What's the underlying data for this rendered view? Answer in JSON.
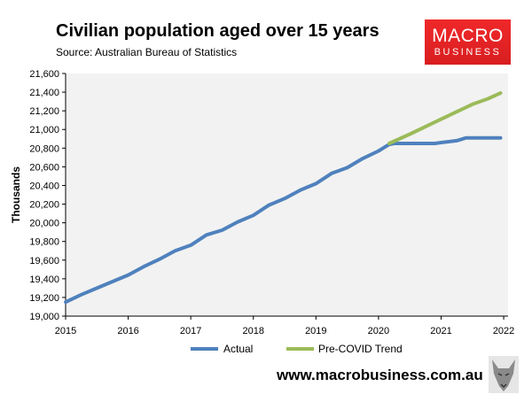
{
  "header": {
    "title": "Civilian population aged over 15 years",
    "source": "Source: Australian Bureau of Statistics"
  },
  "logo": {
    "line1": "MACRO",
    "line2": "BUSINESS"
  },
  "footer": {
    "url": "www.macrobusiness.com.au"
  },
  "colors": {
    "actual": "#4f81bd",
    "trend": "#9bbb59",
    "plot_bg": "#f2f2f2",
    "logo": "#e8242a"
  },
  "chart_data": {
    "type": "line",
    "title": "Civilian population aged over 15 years",
    "xlabel": "",
    "ylabel": "Thousands",
    "xlim": [
      2015,
      2022.07
    ],
    "ylim": [
      19000,
      21600
    ],
    "yticks": [
      19000,
      19200,
      19400,
      19600,
      19800,
      20000,
      20200,
      20400,
      20600,
      20800,
      21000,
      21200,
      21400,
      21600
    ],
    "ytick_labels": [
      "19,000",
      "19,200",
      "19,400",
      "19,600",
      "19,800",
      "20,000",
      "20,200",
      "20,400",
      "20,600",
      "20,800",
      "21,000",
      "21,200",
      "21,400",
      "21,600"
    ],
    "xticks": [
      2015,
      2016,
      2017,
      2018,
      2019,
      2020,
      2021,
      2022
    ],
    "xtick_labels": [
      "2015",
      "2016",
      "2017",
      "2018",
      "2019",
      "2020",
      "2021",
      "2022"
    ],
    "legend_position": "bottom",
    "grid": false,
    "series": [
      {
        "name": "Actual",
        "color": "#4f81bd",
        "x": [
          2015.0,
          2015.25,
          2015.5,
          2015.75,
          2016.0,
          2016.25,
          2016.5,
          2016.75,
          2017.0,
          2017.25,
          2017.5,
          2017.75,
          2018.0,
          2018.25,
          2018.5,
          2018.75,
          2019.0,
          2019.25,
          2019.5,
          2019.75,
          2020.0,
          2020.17,
          2020.25,
          2020.5,
          2020.75,
          2020.9,
          2021.0,
          2021.25,
          2021.4,
          2021.75,
          2021.95
        ],
        "y": [
          19150,
          19230,
          19300,
          19370,
          19440,
          19530,
          19610,
          19700,
          19760,
          19870,
          19920,
          20010,
          20080,
          20190,
          20260,
          20350,
          20420,
          20530,
          20590,
          20690,
          20770,
          20840,
          20850,
          20850,
          20850,
          20850,
          20860,
          20880,
          20910,
          20910,
          20910
        ]
      },
      {
        "name": "Pre-COVID Trend",
        "color": "#9bbb59",
        "x": [
          2020.17,
          2020.5,
          2020.75,
          2021.0,
          2021.25,
          2021.5,
          2021.75,
          2021.95
        ],
        "y": [
          20850,
          20950,
          21030,
          21110,
          21190,
          21270,
          21330,
          21390
        ]
      }
    ]
  }
}
